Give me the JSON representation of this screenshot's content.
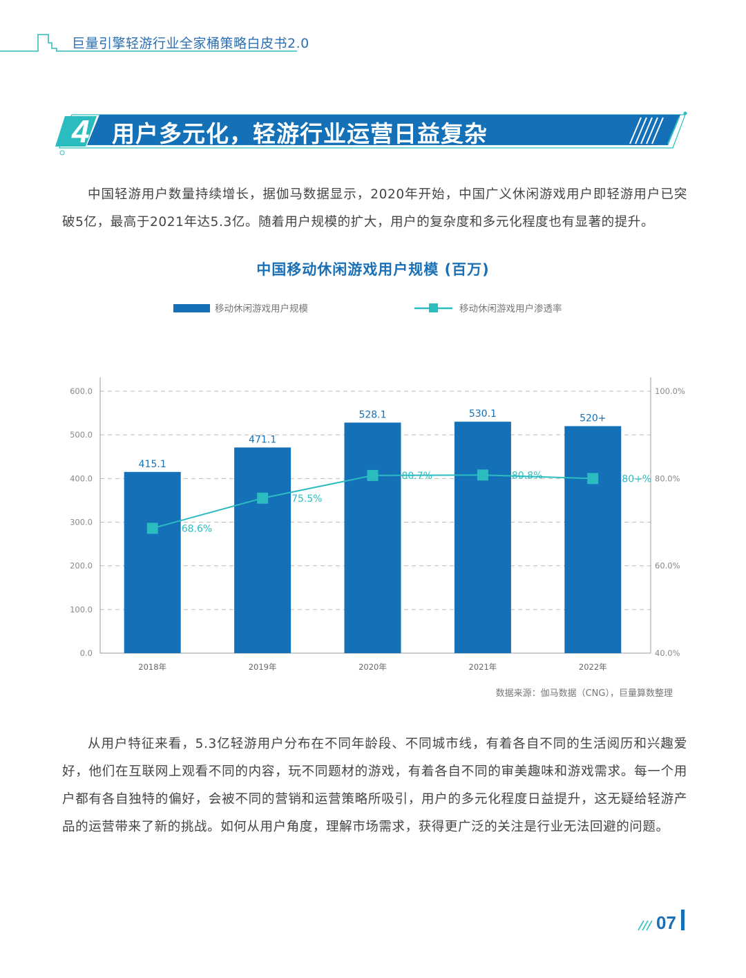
{
  "header": {
    "title": "巨量引擎轻游行业全家桶策略白皮书2.0"
  },
  "section": {
    "number": "4",
    "title": "用户多元化，轻游行业运营日益复杂"
  },
  "paragraphs": [
    "中国轻游用户数量持续增长，据伽马数据显示，2020年开始，中国广义休闲游戏用户即轻游用户已突破5亿，最高于2021年达5.3亿。随着用户规模的扩大，用户的复杂度和多元化程度也有显著的提升。",
    "从用户特征来看，5.3亿轻游用户分布在不同年龄段、不同城市线，有着各自不同的生活阅历和兴趣爱好，他们在互联网上观看不同的内容，玩不同题材的游戏，有着各自不同的审美趣味和游戏需求。每一个用户都有各自独特的偏好，会被不同的营销和运营策略所吸引，用户的多元化程度日益提升，这无疑给轻游产品的运营带来了新的挑战。如何从用户角度，理解市场需求，获得更广泛的关注是行业无法回避的问题。"
  ],
  "chart_data": {
    "type": "bar",
    "title": "中国移动休闲游戏用户规模 (百万)",
    "categories": [
      "2018年",
      "2019年",
      "2020年",
      "2021年",
      "2022年"
    ],
    "series": [
      {
        "name": "移动休闲游戏用户规模",
        "type": "bar",
        "axis": "left",
        "values": [
          415.1,
          471.1,
          528.1,
          530.1,
          520
        ],
        "labels": [
          "415.1",
          "471.1",
          "528.1",
          "530.1",
          "520+"
        ],
        "color": "#1470b7"
      },
      {
        "name": "移动休闲游戏用户渗透率",
        "type": "line",
        "axis": "right",
        "values": [
          68.6,
          75.5,
          80.7,
          80.8,
          80
        ],
        "labels": [
          "68.6%",
          "75.5%",
          "80.7%",
          "80.8%",
          "80+%"
        ],
        "color": "#2bbcc0"
      }
    ],
    "y_left": {
      "ylim": [
        0,
        600
      ],
      "ticks": [
        "0.0",
        "100.0",
        "200.0",
        "300.0",
        "400.0",
        "500.0",
        "600.0"
      ]
    },
    "y_right": {
      "ylim": [
        40,
        100
      ],
      "ticks": [
        "40.0%",
        "60.0%",
        "80.0%",
        "100.0%"
      ]
    },
    "grid": "dashed-horizontal",
    "legend_position": "top",
    "source": "数据来源：伽马数据（CNG），巨量算数整理"
  },
  "page_number": "07",
  "colors": {
    "primary": "#1470b7",
    "accent": "#2bbcc0",
    "text": "#444444"
  }
}
